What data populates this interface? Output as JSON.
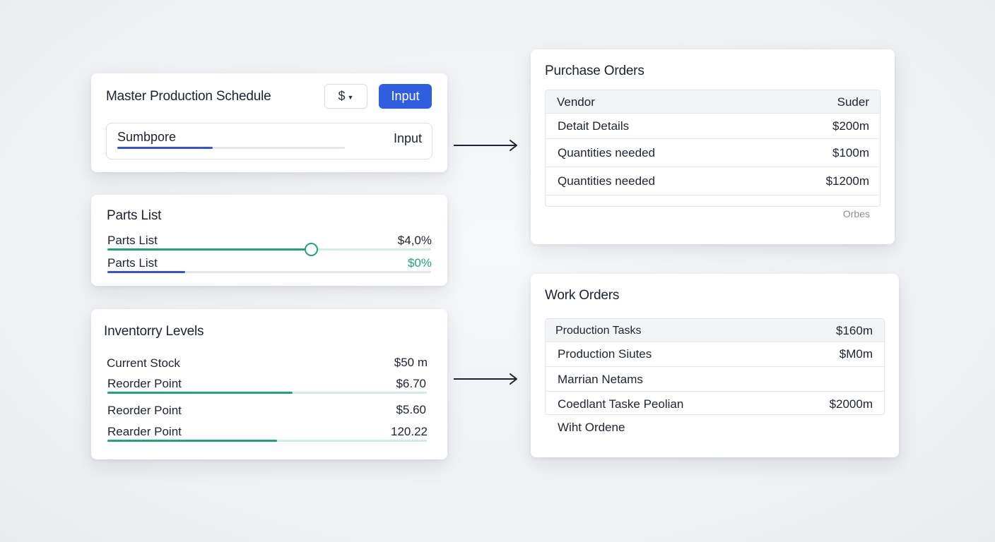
{
  "colors": {
    "accent_blue": "#2f5ee0",
    "progress_blue": "#2f57d2",
    "progress_green": "#1fa37a",
    "track_green": "#cdeee3",
    "value_green": "#1fa37a"
  },
  "mps": {
    "title": "Master Production Schedule",
    "currency_select": {
      "value": "$",
      "icon": "caret-down-icon"
    },
    "input_button": "Input",
    "field": {
      "label": "Sumbpore",
      "action_label": "Input",
      "progress": 0.42
    }
  },
  "parts_list": {
    "title": "Parts List",
    "rows": [
      {
        "label": "Parts List",
        "value": "$4,0%",
        "progress": 0.63,
        "has_knob": true
      },
      {
        "label": "Parts List",
        "value": "$0%",
        "progress": 0.24,
        "has_knob": false
      }
    ]
  },
  "inventory": {
    "title": "Inventorry Levels",
    "rows": [
      {
        "label": "Current Stock",
        "value": "$50 m"
      },
      {
        "label": "Reorder Point",
        "value": "$6.70",
        "progress": 0.58
      },
      {
        "label": "Reorder Point",
        "value": "$5.60"
      },
      {
        "label": "Rearder Point",
        "value": "120.22",
        "progress": 0.53
      }
    ]
  },
  "purchase_orders": {
    "title": "Purchase Orders",
    "columns": [
      "Vendor",
      "Suder"
    ],
    "rows": [
      [
        "Detait Details",
        "$200m"
      ],
      [
        "Quantities needed",
        "$100m"
      ],
      [
        "Quantities needed",
        "$1200m"
      ]
    ],
    "footer": "Orbes"
  },
  "work_orders": {
    "title": "Work Orders",
    "columns": [
      "Production Tasks",
      "$160m"
    ],
    "rows": [
      [
        "Production Siutes",
        "$M0m"
      ],
      [
        "Marrian Netams",
        ""
      ],
      [
        "Coedlant Taske Peolian",
        "$2000m"
      ]
    ],
    "footer": "Wiht Ordene"
  },
  "arrows": [
    {
      "from": "master-production-schedule",
      "to": "purchase-orders",
      "icon": "arrow-right-icon"
    },
    {
      "from": "inventory-levels",
      "to": "work-orders",
      "icon": "arrow-right-icon"
    }
  ]
}
